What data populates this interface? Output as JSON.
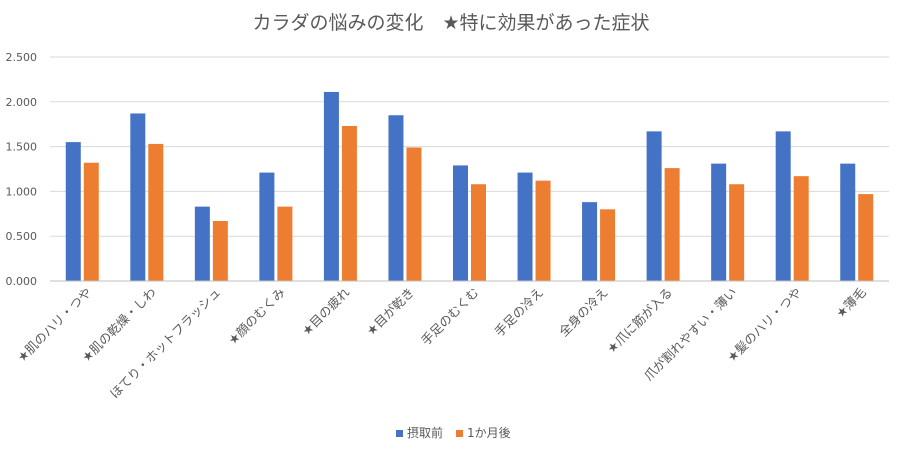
{
  "chart_data": {
    "type": "bar",
    "title": "カラダの悩みの変化　★特に効果があった症状",
    "xlabel": "",
    "ylabel": "",
    "ylim": [
      0,
      2.5
    ],
    "yticks": [
      "0.000",
      "0.500",
      "1.000",
      "1.500",
      "2.000",
      "2.500"
    ],
    "grid": true,
    "legend_position": "bottom",
    "categories": [
      "★肌のハリ・つや",
      "★肌の乾燥・しわ",
      "ほてり・ホットフラッシュ",
      "★顔のむくみ",
      "★目の疲れ",
      "★目が乾き",
      "手足のむくむ",
      "手足の冷え",
      "全身の冷え",
      "★爪に筋が入る",
      "爪が割れやすい・薄い",
      "★髪のハリ・つや",
      "★薄毛"
    ],
    "series": [
      {
        "name": "摂取前",
        "color": "#4472c4",
        "values": [
          1.55,
          1.87,
          0.83,
          1.21,
          2.11,
          1.85,
          1.29,
          1.21,
          0.88,
          1.67,
          1.31,
          1.67,
          1.31
        ]
      },
      {
        "name": "1か月後",
        "color": "#ed7d31",
        "values": [
          1.32,
          1.53,
          0.67,
          0.83,
          1.73,
          1.49,
          1.08,
          1.12,
          0.8,
          1.26,
          1.08,
          1.17,
          0.97
        ]
      }
    ]
  }
}
